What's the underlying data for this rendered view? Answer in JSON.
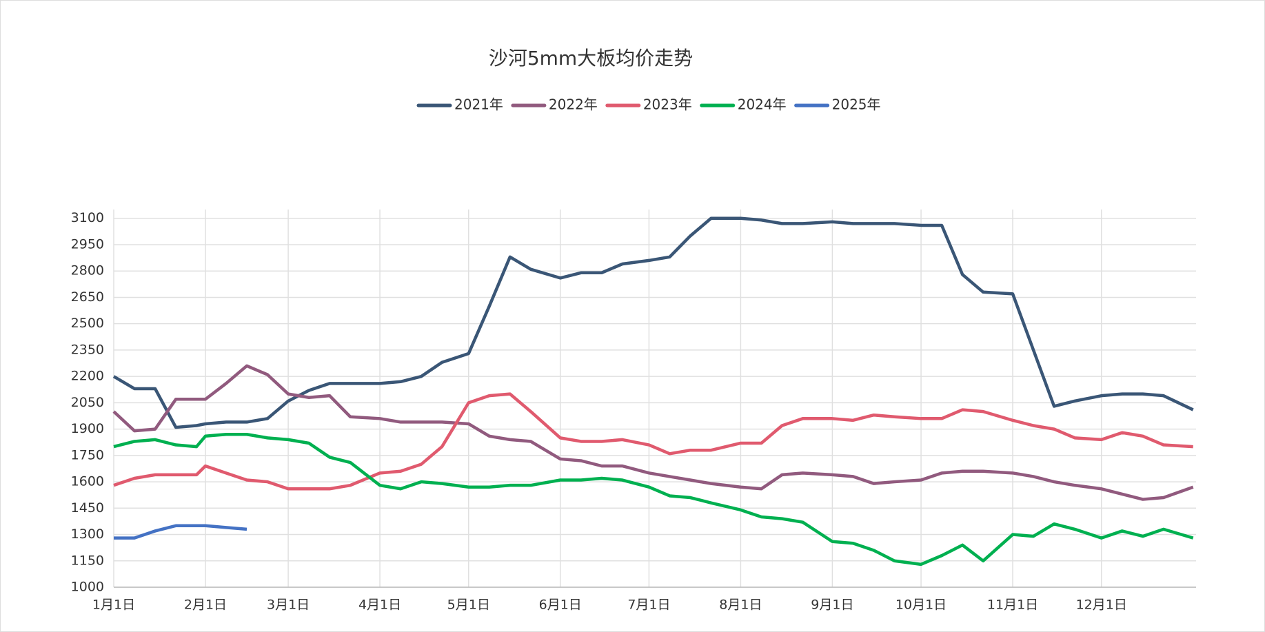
{
  "chart_data": {
    "type": "line",
    "title": "沙河5mm大板均价走势",
    "x": [
      0,
      7,
      14,
      21,
      28,
      31,
      38,
      45,
      52,
      59,
      66,
      73,
      80,
      90,
      97,
      104,
      111,
      120,
      127,
      134,
      141,
      151,
      158,
      165,
      172,
      181,
      188,
      195,
      202,
      212,
      219,
      226,
      233,
      243,
      250,
      257,
      264,
      273,
      280,
      287,
      294,
      304,
      311,
      318,
      325,
      334,
      341,
      348,
      355,
      365
    ],
    "xlim": [
      0,
      366
    ],
    "xticks": [
      {
        "value": 0,
        "label": "1月1日"
      },
      {
        "value": 31,
        "label": "2月1日"
      },
      {
        "value": 59,
        "label": "3月1日"
      },
      {
        "value": 90,
        "label": "4月1日"
      },
      {
        "value": 120,
        "label": "5月1日"
      },
      {
        "value": 151,
        "label": "6月1日"
      },
      {
        "value": 181,
        "label": "7月1日"
      },
      {
        "value": 212,
        "label": "8月1日"
      },
      {
        "value": 243,
        "label": "9月1日"
      },
      {
        "value": 273,
        "label": "10月1日"
      },
      {
        "value": 304,
        "label": "11月1日"
      },
      {
        "value": 334,
        "label": "12月1日"
      }
    ],
    "ylim": [
      1000,
      3150
    ],
    "yticks": [
      1000,
      1150,
      1300,
      1450,
      1600,
      1750,
      1900,
      2050,
      2200,
      2350,
      2500,
      2650,
      2800,
      2950,
      3100
    ],
    "grid": true,
    "legend": "top",
    "series": [
      {
        "name": "2021年",
        "color": "#3a5676",
        "values": [
          2200,
          2130,
          2130,
          1910,
          1920,
          1930,
          1940,
          1940,
          1960,
          2060,
          2120,
          2160,
          2160,
          2160,
          2170,
          2200,
          2280,
          2330,
          2600,
          2880,
          2810,
          2760,
          2790,
          2790,
          2840,
          2860,
          2880,
          3000,
          3100,
          3100,
          3090,
          3070,
          3070,
          3080,
          3070,
          3070,
          3070,
          3060,
          3060,
          2780,
          2680,
          2670,
          2350,
          2030,
          2060,
          2090,
          2100,
          2100,
          2090,
          2010
        ]
      },
      {
        "name": "2022年",
        "color": "#915a7e",
        "values": [
          2000,
          1890,
          1900,
          2070,
          2070,
          2070,
          2160,
          2260,
          2210,
          2100,
          2080,
          2090,
          1970,
          1960,
          1940,
          1940,
          1940,
          1930,
          1860,
          1840,
          1830,
          1730,
          1720,
          1690,
          1690,
          1650,
          1630,
          1610,
          1590,
          1570,
          1560,
          1640,
          1650,
          1640,
          1630,
          1590,
          1600,
          1610,
          1650,
          1660,
          1660,
          1650,
          1630,
          1600,
          1580,
          1560,
          1530,
          1500,
          1510,
          1570
        ]
      },
      {
        "name": "2023年",
        "color": "#e05a6e",
        "values": [
          1580,
          1620,
          1640,
          1640,
          1640,
          1690,
          1650,
          1610,
          1600,
          1560,
          1560,
          1560,
          1580,
          1650,
          1660,
          1700,
          1800,
          2050,
          2090,
          2100,
          2000,
          1850,
          1830,
          1830,
          1840,
          1810,
          1760,
          1780,
          1780,
          1820,
          1820,
          1920,
          1960,
          1960,
          1950,
          1980,
          1970,
          1960,
          1960,
          2010,
          2000,
          1950,
          1920,
          1900,
          1850,
          1840,
          1880,
          1860,
          1810,
          1800
        ]
      },
      {
        "name": "2024年",
        "color": "#00b050",
        "values": [
          1800,
          1830,
          1840,
          1810,
          1800,
          1860,
          1870,
          1870,
          1850,
          1840,
          1820,
          1740,
          1710,
          1580,
          1560,
          1600,
          1590,
          1570,
          1570,
          1580,
          1580,
          1610,
          1610,
          1620,
          1610,
          1570,
          1520,
          1510,
          1480,
          1440,
          1400,
          1390,
          1370,
          1260,
          1250,
          1210,
          1150,
          1130,
          1180,
          1240,
          1150,
          1300,
          1290,
          1360,
          1330,
          1280,
          1320,
          1290,
          1330,
          1280
        ]
      },
      {
        "name": "2025年",
        "color": "#4472c4",
        "values": [
          1280,
          1280,
          1320,
          1350,
          1350,
          1350,
          1340,
          1330,
          null,
          null,
          null,
          null,
          null,
          null,
          null,
          null,
          null,
          null,
          null,
          null,
          null,
          null,
          null,
          null,
          null,
          null,
          null,
          null,
          null,
          null,
          null,
          null,
          null,
          null,
          null,
          null,
          null,
          null,
          null,
          null,
          null,
          null,
          null,
          null,
          null,
          null,
          null,
          null,
          null,
          null
        ]
      }
    ]
  }
}
